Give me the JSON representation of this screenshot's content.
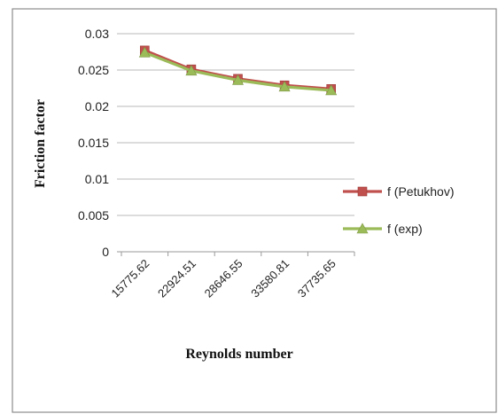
{
  "chart_data": {
    "type": "line",
    "categories": [
      "15775.62",
      "22924.51",
      "28646.55",
      "33580.81",
      "37735.65"
    ],
    "series": [
      {
        "name": "f (Petukhov)",
        "values": [
          0.0277,
          0.0251,
          0.0238,
          0.0229,
          0.0224
        ],
        "color": "#c0504d",
        "marker": "square"
      },
      {
        "name": "f (exp)",
        "values": [
          0.0274,
          0.0249,
          0.0236,
          0.0227,
          0.0222
        ],
        "color": "#9bbb59",
        "marker": "triangle"
      }
    ],
    "yticks": [
      "0",
      "0.005",
      "0.01",
      "0.015",
      "0.02",
      "0.025",
      "0.03"
    ],
    "ylim": [
      0,
      0.03
    ],
    "xlabel": "Reynolds number",
    "ylabel": "Friction factor",
    "grid": "horizontal",
    "legend_position": "right"
  }
}
